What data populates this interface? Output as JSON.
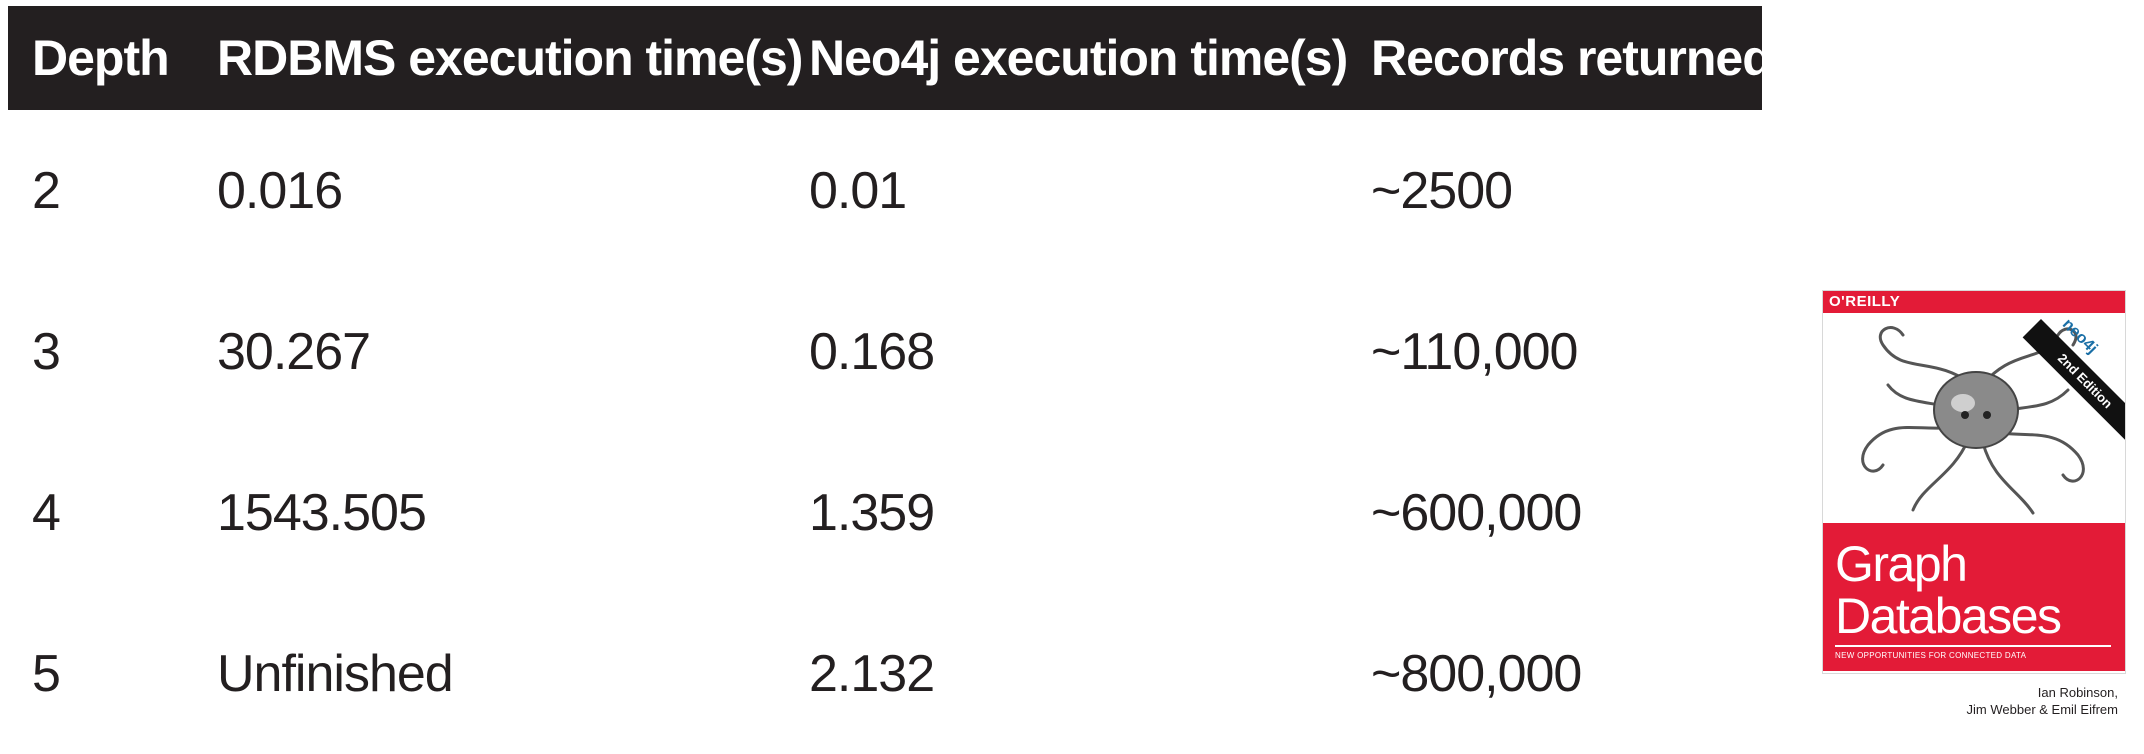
{
  "table": {
    "headers": [
      "Depth",
      "RDBMS execution time(s)",
      "Neo4j execution time(s)",
      "Records returned"
    ],
    "rows": [
      [
        "2",
        "0.016",
        "0.01",
        "~2500"
      ],
      [
        "3",
        "30.267",
        "0.168",
        "~110,000"
      ],
      [
        "4",
        "1543.505",
        "1.359",
        "~600,000"
      ],
      [
        "5",
        "Unfinished",
        "2.132",
        "~800,000"
      ]
    ]
  },
  "book": {
    "publisher": "O'REILLY",
    "edition": "2nd Edition",
    "sponsor": "neo4j",
    "title_line1": "Graph",
    "title_line2": "Databases",
    "subtitle": "NEW OPPORTUNITIES FOR CONNECTED DATA",
    "authors_line1": "Ian Robinson,",
    "authors_line2": "Jim Webber & Emil Eifrem"
  },
  "colors": {
    "header_bg": "#231f20",
    "brand_red": "#e31b37",
    "text": "#231f20"
  }
}
